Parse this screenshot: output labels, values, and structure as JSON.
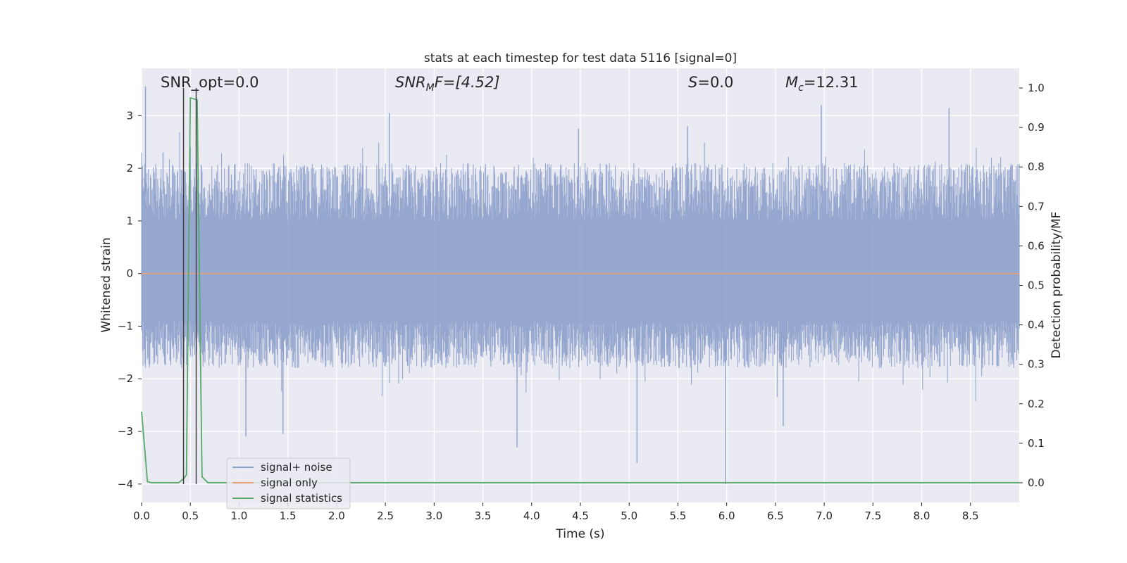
{
  "chart_data": {
    "type": "line",
    "title": "stats at each timestep for test data 5116 [signal=0]",
    "xlabel": "Time (s)",
    "ylabel_left": "Whitened strain",
    "ylabel_right": "Detection probability/MF",
    "xlim": [
      0.0,
      9.0
    ],
    "ylim_left": [
      -4.35,
      3.9
    ],
    "ylim_right": [
      -0.05,
      1.05
    ],
    "xticks": [
      "0.0",
      "0.5",
      "1.0",
      "1.5",
      "2.0",
      "2.5",
      "3.0",
      "3.5",
      "4.0",
      "4.5",
      "5.0",
      "5.5",
      "6.0",
      "6.5",
      "7.0",
      "7.5",
      "8.0",
      "8.5"
    ],
    "xtick_values": [
      0.0,
      0.5,
      1.0,
      1.5,
      2.0,
      2.5,
      3.0,
      3.5,
      4.0,
      4.5,
      5.0,
      5.5,
      6.0,
      6.5,
      7.0,
      7.5,
      8.0,
      8.5
    ],
    "yticks_left": [
      "3",
      "2",
      "1",
      "0",
      "−1",
      "−2",
      "−3",
      "−4"
    ],
    "ytick_values_left": [
      3,
      2,
      1,
      0,
      -1,
      -2,
      -3,
      -4
    ],
    "yticks_right": [
      "1.0",
      "0.9",
      "0.8",
      "0.7",
      "0.6",
      "0.5",
      "0.4",
      "0.3",
      "0.2",
      "0.1",
      "0.0"
    ],
    "ytick_values_right": [
      1.0,
      0.9,
      0.8,
      0.7,
      0.6,
      0.5,
      0.4,
      0.3,
      0.2,
      0.1,
      0.0
    ],
    "grid": true,
    "legend_position": "lower-left",
    "annotations": {
      "snr_opt": "SNR_opt=0.0",
      "snr_mf_name": "SNR",
      "snr_mf_sub": "M",
      "snr_mf_rest": "F=[4.52]",
      "s_name": "S",
      "s_rest": "=0.0",
      "mc_name": "M",
      "mc_sub": "c",
      "mc_rest": "=12.31"
    },
    "vertical_markers_x": [
      0.43,
      0.56
    ],
    "series": [
      {
        "name": "signal+ noise",
        "axis": "left",
        "color": "#8da0cb",
        "note_style": "dense noise band",
        "band_low": -1.8,
        "band_high": 2.1,
        "peaks": [
          {
            "x": 0.04,
            "y": 3.55
          },
          {
            "x": 0.22,
            "y": 2.3
          },
          {
            "x": 0.5,
            "y": 2.4
          },
          {
            "x": 1.45,
            "y": -3.05
          },
          {
            "x": 2.54,
            "y": 3.05
          },
          {
            "x": 3.85,
            "y": -3.3
          },
          {
            "x": 4.48,
            "y": 2.75
          },
          {
            "x": 5.08,
            "y": -3.6
          },
          {
            "x": 5.6,
            "y": 2.8
          },
          {
            "x": 5.99,
            "y": -4.0
          },
          {
            "x": 6.97,
            "y": 3.2
          },
          {
            "x": 8.28,
            "y": 3.15
          },
          {
            "x": 1.07,
            "y": -3.1
          },
          {
            "x": 6.58,
            "y": -2.9
          }
        ]
      },
      {
        "name": "signal only",
        "axis": "left",
        "color": "#e5a07a",
        "x": [
          0.0,
          9.0
        ],
        "y": [
          0.0,
          0.0
        ]
      },
      {
        "name": "signal statistics",
        "axis": "right",
        "color": "#55a868",
        "x": [
          0.0,
          0.06,
          0.1,
          0.38,
          0.43,
          0.46,
          0.5,
          0.57,
          0.62,
          0.68,
          9.0
        ],
        "y": [
          0.18,
          0.003,
          0.0,
          0.0,
          0.01,
          0.02,
          0.975,
          0.97,
          0.015,
          0.0,
          0.0
        ]
      }
    ]
  }
}
